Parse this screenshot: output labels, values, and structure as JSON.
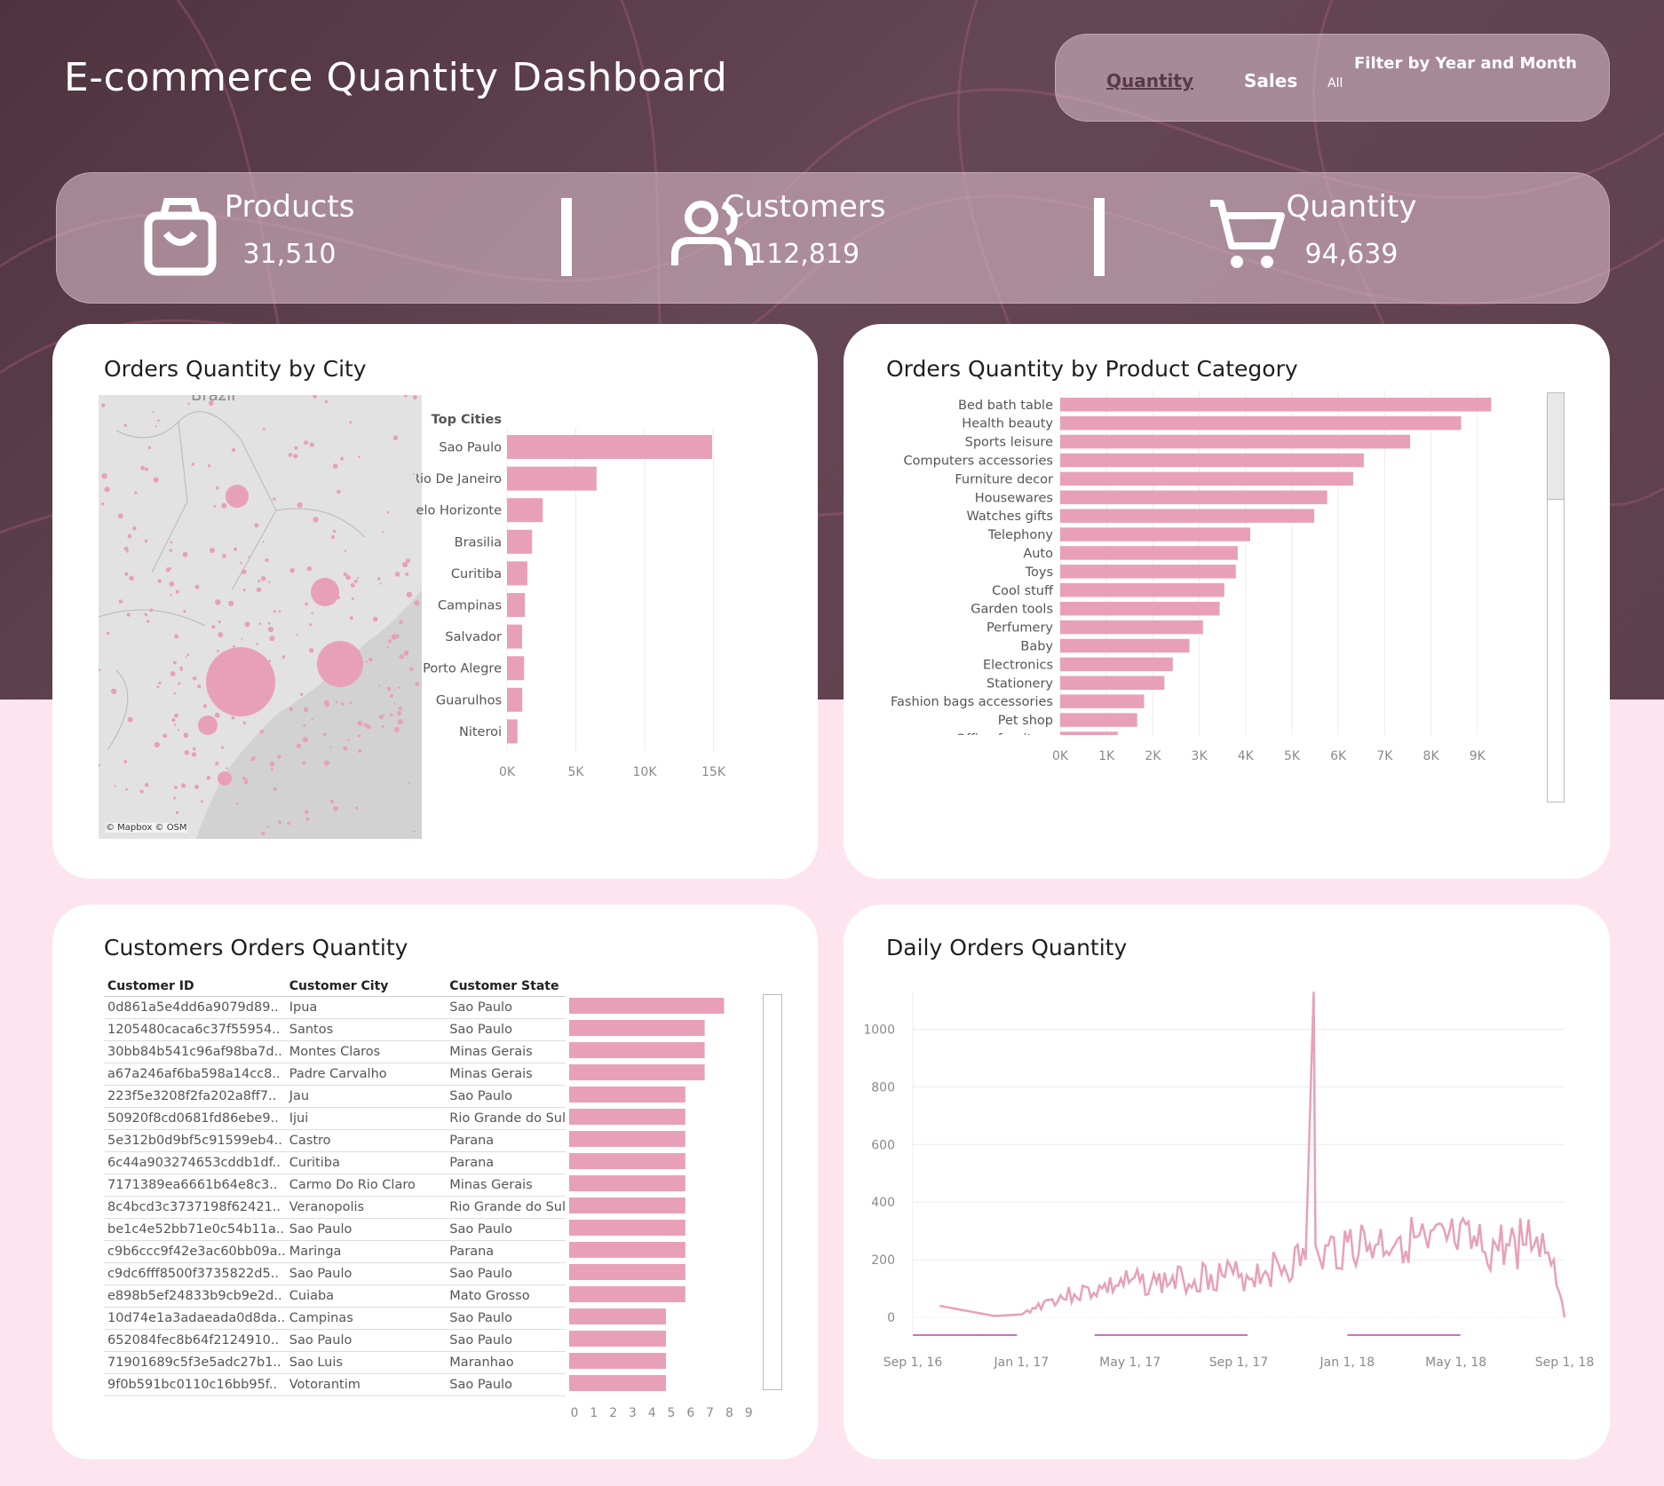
{
  "header": {
    "title": "E-commerce Quantity Dashboard",
    "tabs": [
      {
        "label": "Quantity",
        "active": true
      },
      {
        "label": "Sales",
        "active": false
      }
    ],
    "filter_label": "Filter by Year and Month",
    "filter_value": "All"
  },
  "kpis": [
    {
      "label": "Products",
      "value": "31,510",
      "icon": "shopping-bag-icon"
    },
    {
      "label": "Customers",
      "value": "112,819",
      "icon": "users-icon"
    },
    {
      "label": "Quantity",
      "value": "94,639",
      "icon": "shopping-cart-icon"
    }
  ],
  "city_card": {
    "title": "Orders Quantity by City",
    "map_label": "Brazil",
    "map_attribution": "© Mapbox © OSM"
  },
  "category_card": {
    "title": "Orders Quantity by Product Category"
  },
  "customers_card": {
    "title": "Customers Orders Quantity",
    "columns": [
      "Customer ID",
      "Customer City",
      "Customer State"
    ],
    "rows": [
      {
        "id": "0d861a5e4dd6a9079d89..",
        "city": "Ipua",
        "state": "Sao Paulo",
        "qty": 8
      },
      {
        "id": "1205480caca6c37f55954..",
        "city": "Santos",
        "state": "Sao Paulo",
        "qty": 7
      },
      {
        "id": "30bb84b541c96af98ba7d..",
        "city": "Montes Claros",
        "state": "Minas Gerais",
        "qty": 7
      },
      {
        "id": "a67a246af6ba598a14cc8..",
        "city": "Padre Carvalho",
        "state": "Minas Gerais",
        "qty": 7
      },
      {
        "id": "223f5e3208f2fa202a8ff7..",
        "city": "Jau",
        "state": "Sao Paulo",
        "qty": 6
      },
      {
        "id": "50920f8cd0681fd86ebe9..",
        "city": "Ijui",
        "state": "Rio Grande do Sul",
        "qty": 6
      },
      {
        "id": "5e312b0d9bf5c91599eb4..",
        "city": "Castro",
        "state": "Parana",
        "qty": 6
      },
      {
        "id": "6c44a903274653cddb1df..",
        "city": "Curitiba",
        "state": "Parana",
        "qty": 6
      },
      {
        "id": "7171389ea6661b64e8c3..",
        "city": "Carmo Do Rio Claro",
        "state": "Minas Gerais",
        "qty": 6
      },
      {
        "id": "8c4bcd3c3737198f62421..",
        "city": "Veranopolis",
        "state": "Rio Grande do Sul",
        "qty": 6
      },
      {
        "id": "be1c4e52bb71e0c54b11a..",
        "city": "Sao Paulo",
        "state": "Sao Paulo",
        "qty": 6
      },
      {
        "id": "c9b6ccc9f42e3ac60bb09a..",
        "city": "Maringa",
        "state": "Parana",
        "qty": 6
      },
      {
        "id": "c9dc6fff8500f3735822d5..",
        "city": "Sao Paulo",
        "state": "Sao Paulo",
        "qty": 6
      },
      {
        "id": "e898b5ef24833b9cb9e2d..",
        "city": "Cuiaba",
        "state": "Mato Grosso",
        "qty": 6
      },
      {
        "id": "10d74e1a3adaeada0d8da..",
        "city": "Campinas",
        "state": "Sao Paulo",
        "qty": 5
      },
      {
        "id": "652084fec8b64f2124910..",
        "city": "Sao Paulo",
        "state": "Sao Paulo",
        "qty": 5
      },
      {
        "id": "71901689c5f3e5adc27b1..",
        "city": "Sao Luis",
        "state": "Maranhao",
        "qty": 5
      },
      {
        "id": "9f0b591bc0110c16bb95f..",
        "city": "Votorantim",
        "state": "Sao Paulo",
        "qty": 5
      }
    ],
    "axis_ticks": [
      "0",
      "1",
      "2",
      "3",
      "4",
      "5",
      "6",
      "7",
      "8",
      "9"
    ]
  },
  "daily_card": {
    "title": "Daily Orders Quantity"
  },
  "chart_data": [
    {
      "type": "bar",
      "title": "Top Cities",
      "orientation": "horizontal",
      "categories": [
        "Sao Paulo",
        "Rio De Janeiro",
        "Belo Horizonte",
        "Brasilia",
        "Curitiba",
        "Campinas",
        "Salvador",
        "Porto Alegre",
        "Guarulhos",
        "Niteroi"
      ],
      "values": [
        14900,
        6500,
        2600,
        1820,
        1480,
        1300,
        1100,
        1240,
        1110,
        760
      ],
      "xlim": [
        0,
        16000
      ],
      "ticks": [
        0,
        5000,
        10000,
        15000
      ],
      "tick_labels": [
        "0K",
        "5K",
        "10K",
        "15K"
      ]
    },
    {
      "type": "bar",
      "title": "Orders Quantity by Product Category",
      "orientation": "horizontal",
      "categories": [
        "Bed bath table",
        "Health beauty",
        "Sports leisure",
        "Computers accessories",
        "Furniture decor",
        "Housewares",
        "Watches gifts",
        "Telephony",
        "Auto",
        "Toys",
        "Cool stuff",
        "Garden tools",
        "Perfumery",
        "Baby",
        "Electronics",
        "Stationery",
        "Fashion bags accessories",
        "Pet shop",
        "Office furniture"
      ],
      "values": [
        9300,
        8650,
        7550,
        6550,
        6320,
        5760,
        5480,
        4100,
        3830,
        3790,
        3540,
        3440,
        3080,
        2790,
        2430,
        2250,
        1810,
        1660,
        1240
      ],
      "xlim": [
        0,
        10000
      ],
      "ticks": [
        0,
        1000,
        2000,
        3000,
        4000,
        5000,
        6000,
        7000,
        8000,
        9000
      ],
      "tick_labels": [
        "0K",
        "1K",
        "2K",
        "3K",
        "4K",
        "5K",
        "6K",
        "7K",
        "8K",
        "9K"
      ]
    },
    {
      "type": "line",
      "title": "Daily Orders Quantity",
      "ylim": [
        0,
        1100
      ],
      "yticks": [
        0,
        200,
        400,
        600,
        800,
        1000
      ],
      "x_tick_labels": [
        "Sep 1, 16",
        "Jan 1, 17",
        "May 1, 17",
        "Sep 1, 17",
        "Jan 1, 18",
        "May 1, 18",
        "Sep 1, 18"
      ],
      "x": [
        "2016-10",
        "2016-12",
        "2017-01",
        "2017-02",
        "2017-03",
        "2017-04",
        "2017-05",
        "2017-06",
        "2017-07",
        "2017-08",
        "2017-09",
        "2017-10",
        "2017-11-15",
        "2017-11-24",
        "2017-11-26",
        "2017-12",
        "2018-01",
        "2018-02",
        "2018-03",
        "2018-04",
        "2018-05",
        "2018-06",
        "2018-07",
        "2018-08",
        "2018-08-20",
        "2018-09"
      ],
      "values": [
        40,
        5,
        10,
        60,
        80,
        100,
        120,
        120,
        130,
        150,
        140,
        160,
        200,
        1130,
        250,
        200,
        260,
        250,
        280,
        240,
        260,
        230,
        250,
        280,
        200,
        0
      ]
    }
  ]
}
